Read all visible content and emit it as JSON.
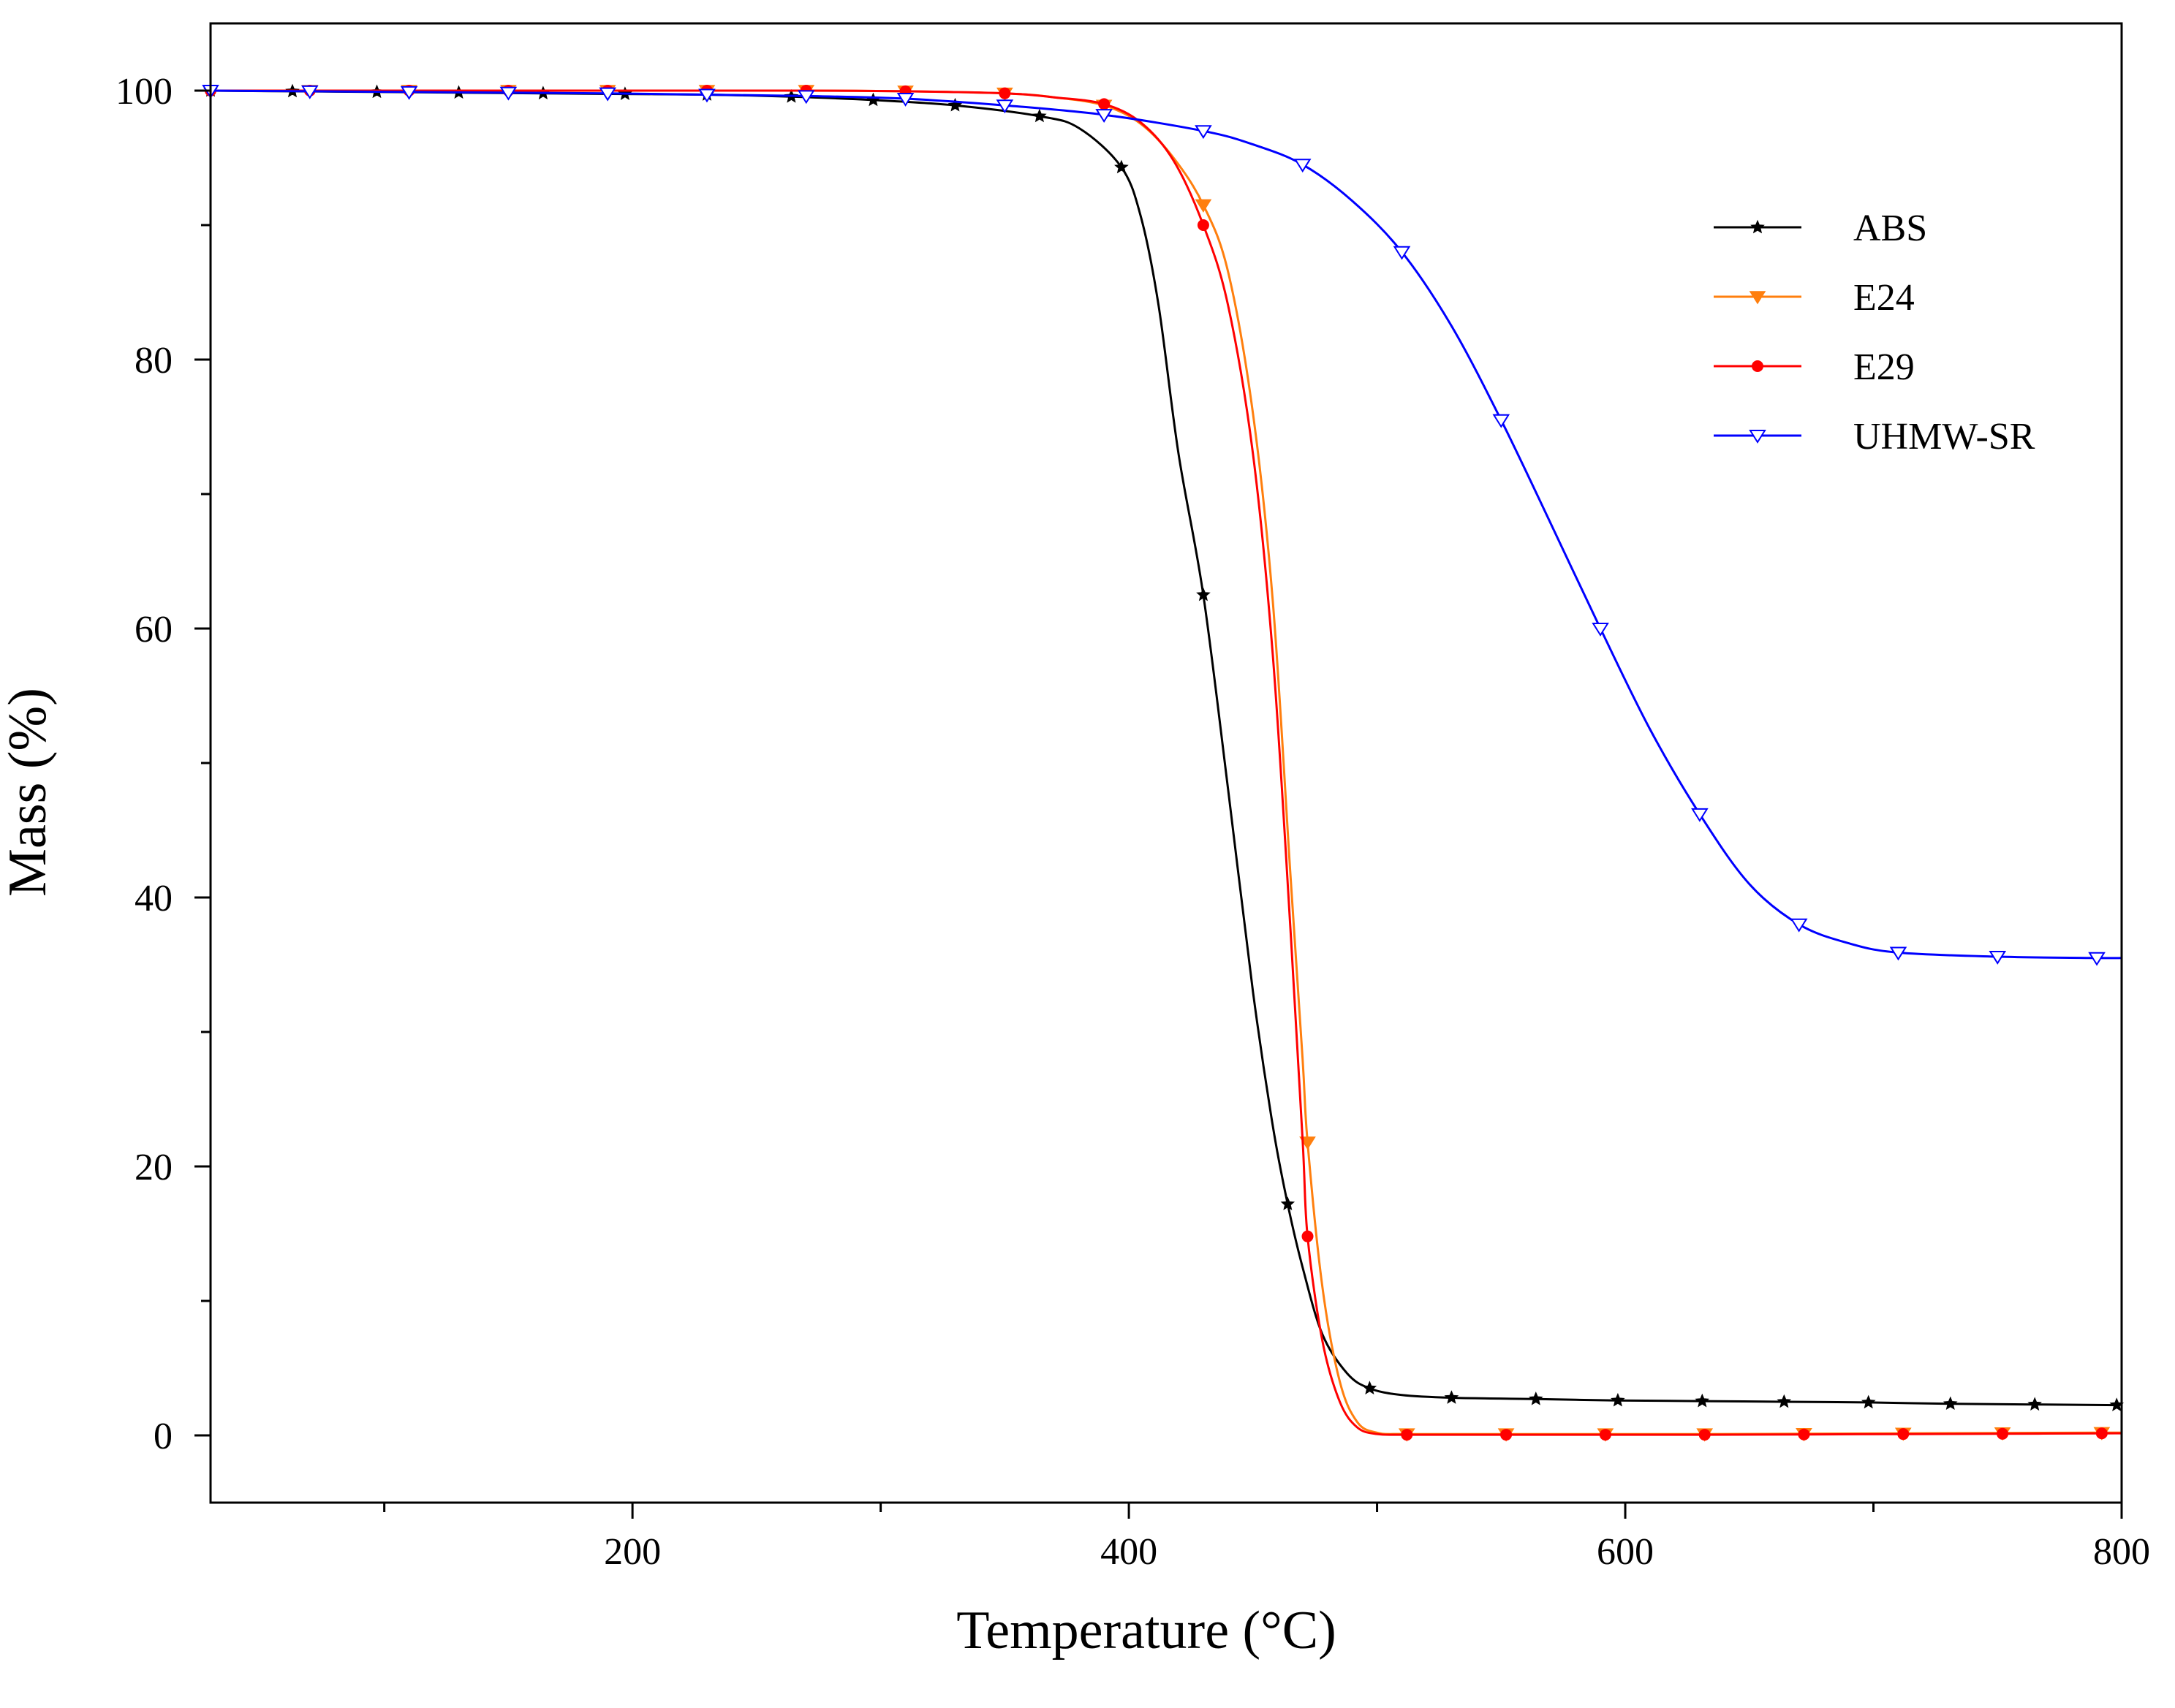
{
  "chart_data": {
    "type": "line",
    "title": "",
    "xlabel": "Temperature (°C)",
    "ylabel": "Mass (%)",
    "xlim": [
      30,
      800
    ],
    "ylim": [
      -5,
      105
    ],
    "x_ticks": [
      200,
      400,
      600,
      800
    ],
    "x_minor_ticks": [
      100,
      300,
      500,
      700
    ],
    "y_ticks": [
      0,
      20,
      40,
      60,
      80,
      100
    ],
    "y_minor_ticks": [
      10,
      30,
      50,
      70,
      90
    ],
    "legend_position": "top-right",
    "series": [
      {
        "name": "ABS",
        "color": "#000000",
        "marker": "star",
        "points": [
          [
            30,
            100
          ],
          [
            63,
            99.95
          ],
          [
            97,
            99.9
          ],
          [
            130,
            99.85
          ],
          [
            164,
            99.8
          ],
          [
            197,
            99.75
          ],
          [
            230,
            99.7
          ],
          [
            264,
            99.55
          ],
          [
            297,
            99.3
          ],
          [
            330,
            98.9
          ],
          [
            364,
            98.1
          ],
          [
            380,
            97.2
          ],
          [
            397,
            94.3
          ],
          [
            405,
            90.5
          ],
          [
            412,
            84.0
          ],
          [
            420,
            73.0
          ],
          [
            430,
            62.5
          ],
          [
            440,
            48.0
          ],
          [
            450,
            33.0
          ],
          [
            458,
            23.0
          ],
          [
            464,
            17.2
          ],
          [
            470,
            12.5
          ],
          [
            478,
            7.5
          ],
          [
            488,
            4.6
          ],
          [
            497,
            3.5
          ],
          [
            510,
            3.0
          ],
          [
            530,
            2.8
          ],
          [
            564,
            2.7
          ],
          [
            597,
            2.6
          ],
          [
            631,
            2.55
          ],
          [
            664,
            2.5
          ],
          [
            698,
            2.45
          ],
          [
            731,
            2.35
          ],
          [
            765,
            2.3
          ],
          [
            798,
            2.25
          ]
        ],
        "marker_x": [
          30,
          63,
          97,
          130,
          164,
          197,
          230,
          264,
          297,
          330,
          364,
          397,
          430,
          464,
          497,
          530,
          564,
          597,
          631,
          664,
          698,
          731,
          765,
          798
        ]
      },
      {
        "name": "E24",
        "color": "#ff7f0e",
        "marker": "triangle-down",
        "points": [
          [
            30,
            100
          ],
          [
            70,
            100
          ],
          [
            110,
            100
          ],
          [
            150,
            100
          ],
          [
            190,
            100
          ],
          [
            230,
            100
          ],
          [
            270,
            100
          ],
          [
            310,
            99.95
          ],
          [
            350,
            99.8
          ],
          [
            370,
            99.5
          ],
          [
            390,
            98.9
          ],
          [
            405,
            97.5
          ],
          [
            418,
            95.0
          ],
          [
            430,
            91.5
          ],
          [
            440,
            86.5
          ],
          [
            450,
            76.0
          ],
          [
            458,
            62.0
          ],
          [
            465,
            42.0
          ],
          [
            470,
            28.0
          ],
          [
            472,
            21.8
          ],
          [
            478,
            11.0
          ],
          [
            485,
            4.0
          ],
          [
            492,
            1.0
          ],
          [
            500,
            0.2
          ],
          [
            512,
            0.1
          ],
          [
            552,
            0.1
          ],
          [
            592,
            0.1
          ],
          [
            632,
            0.1
          ],
          [
            672,
            0.12
          ],
          [
            712,
            0.15
          ],
          [
            752,
            0.18
          ],
          [
            792,
            0.2
          ],
          [
            800,
            0.2
          ]
        ],
        "marker_x": [
          30,
          70,
          110,
          150,
          190,
          230,
          270,
          310,
          350,
          390,
          430,
          472,
          512,
          552,
          592,
          632,
          672,
          712,
          752,
          792
        ]
      },
      {
        "name": "E29",
        "color": "#ff0000",
        "marker": "circle",
        "points": [
          [
            30,
            100
          ],
          [
            70,
            100
          ],
          [
            110,
            100
          ],
          [
            150,
            100
          ],
          [
            190,
            100
          ],
          [
            230,
            100
          ],
          [
            270,
            100
          ],
          [
            310,
            99.95
          ],
          [
            350,
            99.8
          ],
          [
            370,
            99.5
          ],
          [
            390,
            99.0
          ],
          [
            405,
            97.6
          ],
          [
            418,
            94.8
          ],
          [
            430,
            90.0
          ],
          [
            440,
            84.0
          ],
          [
            450,
            73.0
          ],
          [
            458,
            58.0
          ],
          [
            465,
            38.0
          ],
          [
            470,
            22.0
          ],
          [
            472,
            14.8
          ],
          [
            478,
            7.0
          ],
          [
            485,
            2.5
          ],
          [
            492,
            0.6
          ],
          [
            500,
            0.1
          ],
          [
            512,
            0.05
          ],
          [
            552,
            0.05
          ],
          [
            592,
            0.05
          ],
          [
            632,
            0.05
          ],
          [
            672,
            0.07
          ],
          [
            712,
            0.1
          ],
          [
            752,
            0.12
          ],
          [
            792,
            0.15
          ],
          [
            800,
            0.15
          ]
        ],
        "marker_x": [
          30,
          70,
          110,
          150,
          190,
          230,
          270,
          310,
          350,
          390,
          430,
          472,
          512,
          552,
          592,
          632,
          672,
          712,
          752,
          792
        ]
      },
      {
        "name": "UHMW-SR",
        "color": "#0000ff",
        "marker": "triangle-down-open",
        "points": [
          [
            30,
            100
          ],
          [
            70,
            99.95
          ],
          [
            110,
            99.9
          ],
          [
            150,
            99.85
          ],
          [
            190,
            99.8
          ],
          [
            230,
            99.7
          ],
          [
            270,
            99.6
          ],
          [
            310,
            99.4
          ],
          [
            350,
            98.9
          ],
          [
            390,
            98.2
          ],
          [
            430,
            97.0
          ],
          [
            450,
            96.0
          ],
          [
            470,
            94.5
          ],
          [
            490,
            91.8
          ],
          [
            510,
            88.0
          ],
          [
            530,
            82.5
          ],
          [
            550,
            75.5
          ],
          [
            570,
            67.8
          ],
          [
            590,
            60.0
          ],
          [
            610,
            52.5
          ],
          [
            630,
            46.2
          ],
          [
            650,
            41.0
          ],
          [
            670,
            38.0
          ],
          [
            690,
            36.6
          ],
          [
            710,
            35.9
          ],
          [
            750,
            35.6
          ],
          [
            790,
            35.5
          ],
          [
            800,
            35.5
          ]
        ],
        "marker_x": [
          30,
          70,
          110,
          150,
          190,
          230,
          270,
          310,
          350,
          390,
          430,
          470,
          510,
          550,
          590,
          630,
          670,
          710,
          750,
          790
        ]
      }
    ]
  }
}
